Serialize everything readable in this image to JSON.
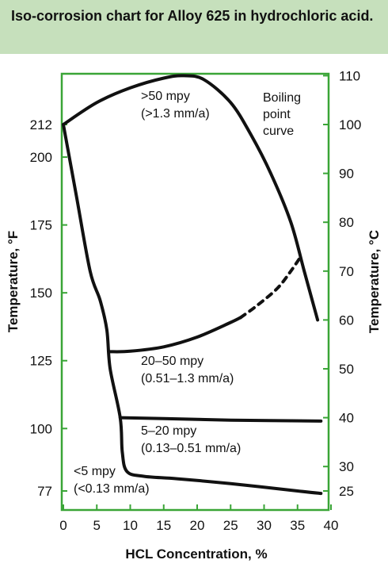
{
  "chart_data": {
    "type": "line",
    "title": "Iso-corrosion chart for Alloy 625 in hydrochloric acid.",
    "xlabel": "HCL Concentration, %",
    "ylabel_left": "Temperature, °F",
    "ylabel_right": "Temperature, °C",
    "xlim": [
      0,
      40
    ],
    "ylim_c": [
      20,
      110
    ],
    "x_ticks": [
      0,
      5,
      10,
      15,
      20,
      25,
      30,
      35,
      40
    ],
    "left_ticks_f": [
      212,
      200,
      175,
      150,
      125,
      100,
      77
    ],
    "right_ticks_c": [
      110,
      100,
      90,
      80,
      70,
      60,
      50,
      40,
      30,
      25
    ],
    "grid": false,
    "series": [
      {
        "name": "Boiling point curve",
        "style": "solid",
        "x": [
          0,
          5,
          10,
          15,
          18,
          21,
          25,
          28,
          31,
          34,
          36,
          38
        ],
        "y": [
          100,
          104.5,
          107.5,
          109.5,
          110,
          109.2,
          104.5,
          98,
          90,
          80,
          70,
          60
        ]
      },
      {
        "name": "",
        "style": "solid",
        "x": [
          0,
          2,
          4,
          5.5,
          6.5,
          7,
          8.5,
          8.8,
          9.5,
          12,
          17,
          25,
          35,
          38.5
        ],
        "y": [
          100,
          85,
          70,
          64,
          58,
          50,
          40,
          33,
          29,
          28,
          27.5,
          26.5,
          25,
          24.5
        ]
      },
      {
        "name": "",
        "style": "solid",
        "x": [
          6.9,
          10,
          15,
          20,
          25,
          26.5
        ],
        "y": [
          53.5,
          53.6,
          54.5,
          56.5,
          59.5,
          60.5
        ]
      },
      {
        "name": "",
        "style": "dashed",
        "x": [
          26.5,
          29,
          32,
          34,
          35.5
        ],
        "y": [
          60.5,
          63,
          66.5,
          70,
          73
        ]
      },
      {
        "name": "",
        "style": "solid",
        "x": [
          8.5,
          15,
          25,
          38.5
        ],
        "y": [
          40,
          39.8,
          39.5,
          39.3
        ]
      }
    ],
    "annotations": [
      {
        "id": "a1",
        "lines": [
          ">50 mpy",
          "(>1.3 mm/a)"
        ]
      },
      {
        "id": "a2",
        "lines": [
          "Boiling",
          "point",
          "curve"
        ]
      },
      {
        "id": "a3",
        "lines": [
          "20–50 mpy",
          "(0.51–1.3 mm/a)"
        ]
      },
      {
        "id": "a4",
        "lines": [
          "5–20 mpy",
          "(0.13–0.51 mm/a)"
        ]
      },
      {
        "id": "a5",
        "lines": [
          "<5 mpy",
          "(<0.13 mm/a)"
        ]
      }
    ],
    "colors": {
      "frame": "#3aa537",
      "title_band": "#c6e0bc",
      "line": "#111111"
    }
  }
}
